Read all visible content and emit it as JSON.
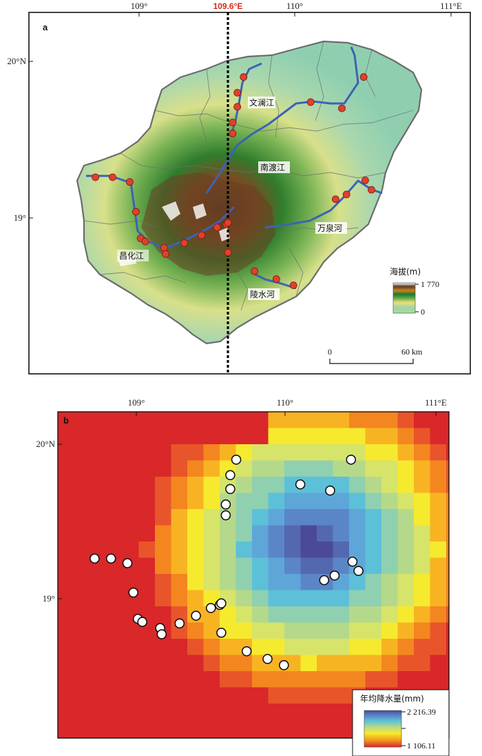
{
  "panel_a": {
    "letter": "a",
    "lon_ticks": [
      "109°",
      "110°",
      "111°E"
    ],
    "lat_ticks": [
      "20°N",
      "19°"
    ],
    "marker_label": "109.6°E",
    "rivers": [
      "文澜江",
      "南渡江",
      "万泉河",
      "昌化江",
      "陵水河"
    ],
    "legend": {
      "title": "海拔(m)",
      "max": "1 770",
      "min": "0"
    },
    "scale": {
      "zero": "0",
      "end": "60 km"
    }
  },
  "panel_b": {
    "letter": "b",
    "lon_ticks": [
      "109°",
      "110°",
      "111°E"
    ],
    "lat_ticks": [
      "20°N",
      "19°"
    ],
    "legend": {
      "title": "年均降水量(mm)",
      "max": "2 216.39",
      "min": "1 106.11"
    }
  },
  "stations": [
    {
      "lon": 108.72,
      "lat": 19.26
    },
    {
      "lon": 108.83,
      "lat": 19.26
    },
    {
      "lon": 108.94,
      "lat": 19.23
    },
    {
      "lon": 108.98,
      "lat": 19.04
    },
    {
      "lon": 109.01,
      "lat": 18.87
    },
    {
      "lon": 109.04,
      "lat": 18.85
    },
    {
      "lon": 109.16,
      "lat": 18.81
    },
    {
      "lon": 109.17,
      "lat": 18.77
    },
    {
      "lon": 109.29,
      "lat": 18.84
    },
    {
      "lon": 109.4,
      "lat": 18.89
    },
    {
      "lon": 109.5,
      "lat": 18.94
    },
    {
      "lon": 109.56,
      "lat": 18.96
    },
    {
      "lon": 109.57,
      "lat": 18.78
    },
    {
      "lon": 109.57,
      "lat": 18.97
    },
    {
      "lon": 109.6,
      "lat": 19.54
    },
    {
      "lon": 109.6,
      "lat": 19.61
    },
    {
      "lon": 109.63,
      "lat": 19.71
    },
    {
      "lon": 109.63,
      "lat": 19.8
    },
    {
      "lon": 109.67,
      "lat": 19.9
    },
    {
      "lon": 109.74,
      "lat": 18.66
    },
    {
      "lon": 109.88,
      "lat": 18.61
    },
    {
      "lon": 109.99,
      "lat": 18.57
    },
    {
      "lon": 110.1,
      "lat": 19.74
    },
    {
      "lon": 110.3,
      "lat": 19.7
    },
    {
      "lon": 110.26,
      "lat": 19.12
    },
    {
      "lon": 110.33,
      "lat": 19.15
    },
    {
      "lon": 110.44,
      "lat": 19.9
    },
    {
      "lon": 110.45,
      "lat": 19.24
    },
    {
      "lon": 110.49,
      "lat": 19.18
    }
  ],
  "colors": {
    "station_a": "#e0402c",
    "station_b": "#ffffff",
    "marker_line": "#000000",
    "marker_text": "#d42a1a",
    "river": "#3b63b4",
    "sea": "#ffffff",
    "lowland": "#a8d6a8"
  }
}
